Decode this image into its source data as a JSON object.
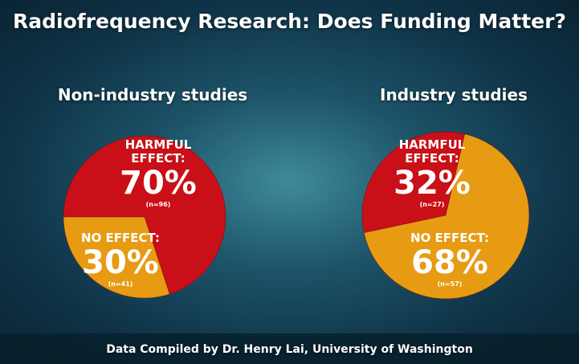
{
  "title": "Radiofrequency Research: Does Funding Matter?",
  "footer": "Data Compiled by Dr. Henry Lai, University of Washington",
  "chart_data": [
    {
      "type": "pie",
      "title": "Non-industry studies",
      "categories": [
        "HARMFUL EFFECT:",
        "NO EFFECT:"
      ],
      "values": [
        70,
        30
      ],
      "value_labels": [
        "70%",
        "30%"
      ],
      "annotations": [
        "(n=96)",
        "(n=41)"
      ],
      "colors": [
        "#c90f17",
        "#e79b12"
      ]
    },
    {
      "type": "pie",
      "title": "Industry studies",
      "categories": [
        "HARMFUL EFFECT:",
        "NO EFFECT:"
      ],
      "values": [
        32,
        68
      ],
      "value_labels": [
        "32%",
        "68%"
      ],
      "annotations": [
        "(n=27)",
        "(n=57)"
      ],
      "colors": [
        "#c90f17",
        "#e79b12"
      ]
    }
  ]
}
